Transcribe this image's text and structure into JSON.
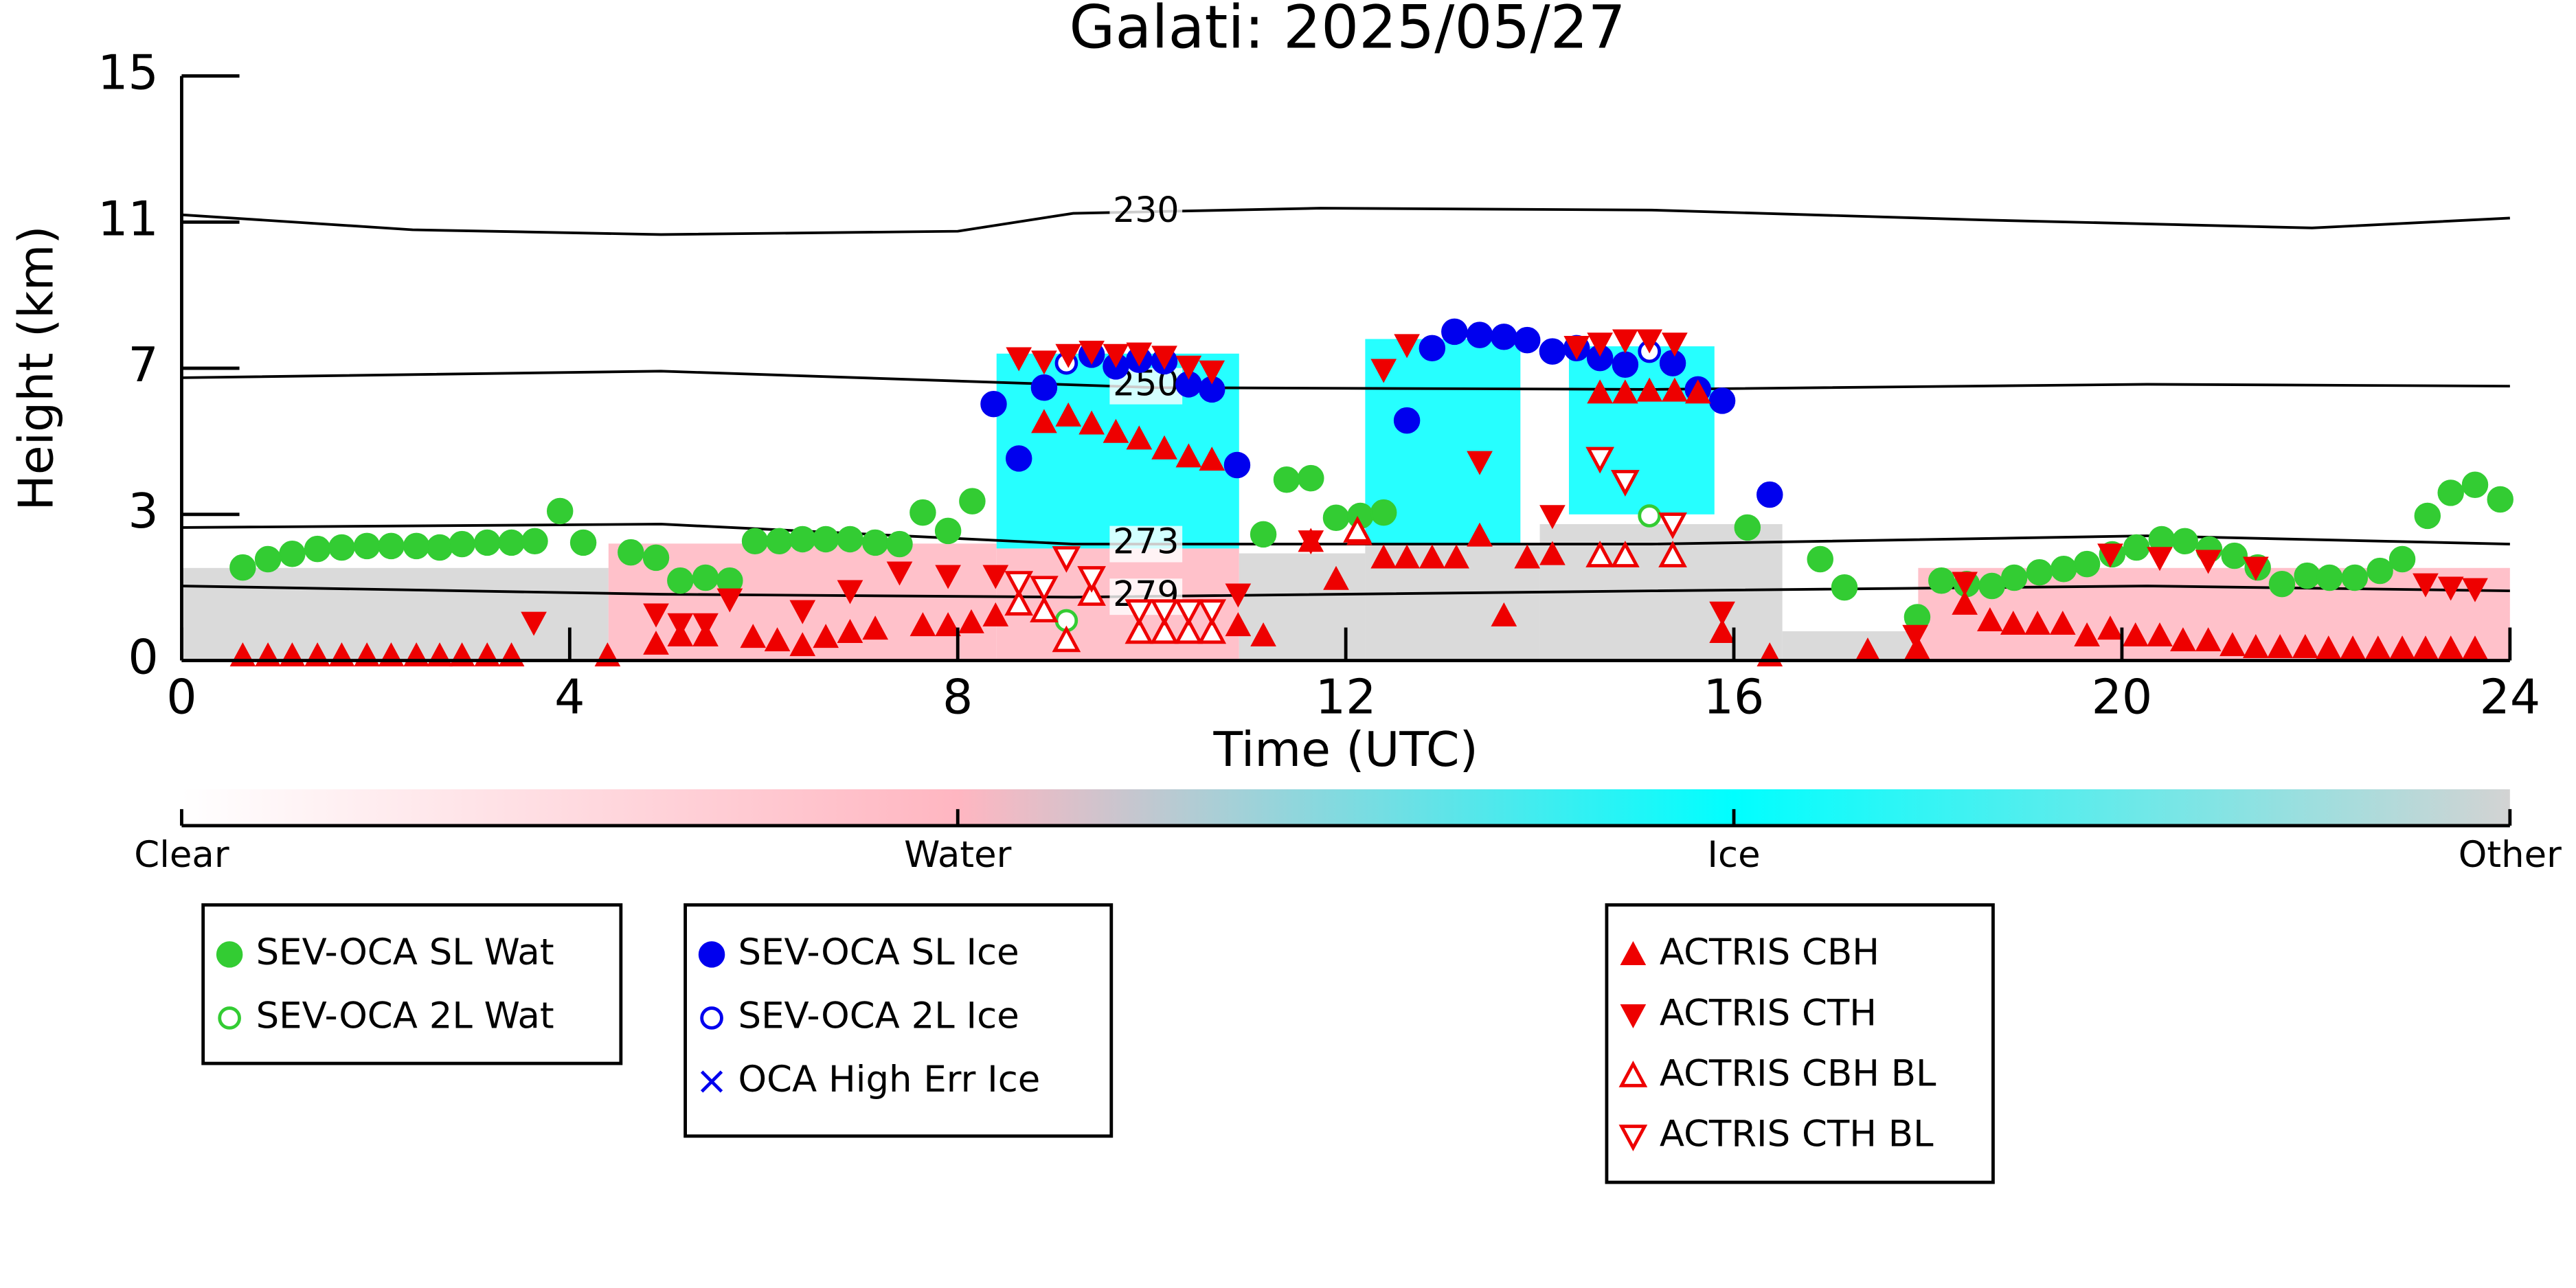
{
  "chart_data": {
    "type": "scatter",
    "title": "Galati: 2025/05/27",
    "xlabel": "Time (UTC)",
    "ylabel": "Height (km)",
    "xlim": [
      0,
      24
    ],
    "xticks": [
      0,
      4,
      8,
      12,
      16,
      20,
      24
    ],
    "ylim": [
      0,
      15
    ],
    "yticks": [
      0,
      3,
      7,
      11,
      15
    ],
    "colorbar": {
      "labels": [
        "Clear",
        "Water",
        "Ice",
        "Other"
      ],
      "colors": [
        "#ffffff",
        "#ffb6c1",
        "#00ffff",
        "#d3d3d3"
      ]
    },
    "curtain": [
      {
        "x": [
          0,
          4.4
        ],
        "y": [
          0,
          1.9
        ],
        "class": "Other"
      },
      {
        "x": [
          4.4,
          8.4
        ],
        "y": [
          0,
          2.4
        ],
        "class": "Water"
      },
      {
        "x": [
          8.4,
          10.9
        ],
        "y": [
          0,
          2.3
        ],
        "class": "Water"
      },
      {
        "x": [
          8.4,
          10.9
        ],
        "y": [
          2.3,
          7.4
        ],
        "class": "Ice"
      },
      {
        "x": [
          10.9,
          12.2
        ],
        "y": [
          0,
          2.2
        ],
        "class": "Other"
      },
      {
        "x": [
          12.2,
          14.0
        ],
        "y": [
          0,
          2.4
        ],
        "class": "Other"
      },
      {
        "x": [
          12.2,
          13.8
        ],
        "y": [
          2.4,
          7.8
        ],
        "class": "Ice"
      },
      {
        "x": [
          14.0,
          16.5
        ],
        "y": [
          0,
          2.8
        ],
        "class": "Other"
      },
      {
        "x": [
          14.3,
          15.8
        ],
        "y": [
          3.0,
          7.6
        ],
        "class": "Ice"
      },
      {
        "x": [
          16.5,
          17.9
        ],
        "y": [
          0,
          0.6
        ],
        "class": "Other"
      },
      {
        "x": [
          17.9,
          24
        ],
        "y": [
          0,
          1.9
        ],
        "class": "Water"
      }
    ],
    "contours": [
      {
        "label": "230",
        "x": [
          0,
          2.38,
          4.94,
          8.0,
          9.19,
          11.74,
          15.15,
          18.55,
          21.96,
          24
        ],
        "y": [
          11.2,
          10.79,
          10.66,
          10.75,
          11.24,
          11.38,
          11.33,
          11.06,
          10.84,
          11.11
        ]
      },
      {
        "label": "250",
        "x": [
          0,
          4.94,
          10.04,
          15.15,
          20.26,
          24
        ],
        "y": [
          6.74,
          6.92,
          6.47,
          6.42,
          6.56,
          6.51
        ]
      },
      {
        "label": "273",
        "x": [
          0,
          4.94,
          9.19,
          15.15,
          20.26,
          24
        ],
        "y": [
          2.73,
          2.8,
          2.39,
          2.39,
          2.56,
          2.39
        ]
      },
      {
        "label": "279",
        "x": [
          0,
          4.94,
          9.19,
          15.15,
          20.26,
          24
        ],
        "y": [
          1.53,
          1.36,
          1.3,
          1.43,
          1.53,
          1.43
        ]
      }
    ],
    "series": [
      {
        "name": "SEV-OCA SL Wat",
        "color": "#33cc33",
        "marker": "o",
        "x": [
          0.63,
          0.89,
          1.14,
          1.4,
          1.65,
          1.91,
          2.16,
          2.42,
          2.66,
          2.89,
          3.15,
          3.4,
          3.64,
          3.9,
          4.14,
          4.63,
          4.89,
          5.14,
          5.4,
          5.65,
          5.91,
          6.16,
          6.4,
          6.64,
          6.89,
          7.15,
          7.4,
          7.64,
          7.9,
          8.15,
          11.15,
          11.39,
          11.64,
          11.9,
          12.15,
          12.39,
          16.14,
          16.89,
          17.14,
          17.89,
          18.14,
          18.4,
          18.66,
          18.89,
          19.15,
          19.4,
          19.64,
          19.9,
          20.15,
          20.41,
          20.65,
          20.9,
          21.16,
          21.4,
          21.65,
          21.91,
          22.14,
          22.4,
          22.66,
          22.89,
          23.15,
          23.39,
          23.64,
          23.9
        ],
        "y": [
          1.91,
          2.08,
          2.19,
          2.29,
          2.32,
          2.35,
          2.35,
          2.35,
          2.32,
          2.39,
          2.42,
          2.42,
          2.45,
          3.09,
          2.42,
          2.22,
          2.11,
          1.64,
          1.7,
          1.64,
          2.45,
          2.45,
          2.49,
          2.49,
          2.49,
          2.42,
          2.39,
          3.05,
          2.66,
          3.36,
          2.59,
          3.95,
          3.99,
          2.93,
          2.97,
          3.05,
          2.73,
          2.08,
          1.5,
          0.89,
          1.64,
          1.57,
          1.53,
          1.7,
          1.81,
          1.88,
          1.98,
          2.18,
          2.32,
          2.49,
          2.45,
          2.28,
          2.15,
          1.91,
          1.57,
          1.74,
          1.7,
          1.7,
          1.84,
          2.08,
          2.97,
          3.59,
          3.81,
          3.41
        ]
      },
      {
        "name": "SEV-OCA 2L Wat",
        "color": "#33cc33",
        "marker": "o_open",
        "x": [
          9.12,
          15.13
        ],
        "y": [
          0.82,
          2.97
        ]
      },
      {
        "name": "SEV-OCA SL Ice",
        "color": "#0000ee",
        "marker": "o",
        "x": [
          8.37,
          8.63,
          8.89,
          9.38,
          9.63,
          9.87,
          10.13,
          10.38,
          10.62,
          10.88,
          12.63,
          12.89,
          13.12,
          13.38,
          13.63,
          13.87,
          14.13,
          14.38,
          14.62,
          14.88,
          15.37,
          15.63,
          15.88,
          16.37
        ],
        "y": [
          6.02,
          4.53,
          6.47,
          7.37,
          7.05,
          7.23,
          7.19,
          6.56,
          6.42,
          4.35,
          5.57,
          7.55,
          8.0,
          7.91,
          7.86,
          7.77,
          7.46,
          7.55,
          7.28,
          7.1,
          7.14,
          6.42,
          6.11,
          3.54
        ]
      },
      {
        "name": "SEV-OCA 2L Ice",
        "color": "#0000ee",
        "marker": "o_open",
        "x": [
          9.12,
          15.13
        ],
        "y": [
          7.14,
          7.46
        ]
      },
      {
        "name": "OCA High Err Ice",
        "color": "#0000ee",
        "marker": "x",
        "x": [],
        "y": []
      },
      {
        "name": "ACTRIS CBH",
        "color": "#ee0000",
        "marker": "^",
        "x": [
          0.63,
          0.89,
          1.14,
          1.4,
          1.65,
          1.91,
          2.16,
          2.42,
          2.66,
          2.89,
          3.15,
          3.4,
          4.39,
          4.89,
          5.14,
          5.4,
          5.89,
          6.14,
          6.4,
          6.64,
          6.89,
          7.15,
          7.64,
          7.9,
          8.14,
          8.39,
          8.89,
          9.14,
          9.38,
          9.63,
          9.87,
          10.13,
          10.38,
          10.62,
          10.89,
          11.15,
          11.64,
          11.9,
          12.14,
          12.39,
          12.63,
          12.89,
          13.14,
          13.38,
          13.63,
          13.87,
          14.13,
          14.62,
          14.88,
          15.13,
          15.39,
          15.63,
          15.88,
          16.37,
          17.38,
          17.89,
          18.38,
          18.64,
          18.88,
          19.13,
          19.39,
          19.64,
          19.88,
          20.14,
          20.39,
          20.63,
          20.89,
          21.14,
          21.38,
          21.63,
          21.89,
          22.13,
          22.38,
          22.64,
          22.89,
          23.13,
          23.39,
          23.64
        ],
        "y": [
          0.1,
          0.1,
          0.1,
          0.1,
          0.1,
          0.1,
          0.1,
          0.1,
          0.1,
          0.1,
          0.1,
          0.1,
          0.1,
          0.34,
          0.51,
          0.51,
          0.48,
          0.41,
          0.31,
          0.48,
          0.58,
          0.65,
          0.72,
          0.72,
          0.78,
          0.92,
          5.52,
          5.7,
          5.48,
          5.25,
          5.07,
          4.8,
          4.58,
          4.49,
          0.72,
          0.51,
          2.45,
          1.67,
          2.59,
          2.11,
          2.11,
          2.11,
          2.11,
          2.56,
          0.92,
          2.11,
          2.18,
          6.33,
          6.33,
          6.38,
          6.38,
          6.33,
          0.58,
          0.1,
          0.2,
          0.24,
          1.16,
          0.82,
          0.75,
          0.75,
          0.75,
          0.51,
          0.65,
          0.51,
          0.51,
          0.41,
          0.41,
          0.31,
          0.27,
          0.27,
          0.27,
          0.24,
          0.24,
          0.24,
          0.24,
          0.24,
          0.24,
          0.24
        ]
      },
      {
        "name": "ACTRIS CTH",
        "color": "#ee0000",
        "marker": "v",
        "x": [
          3.63,
          4.89,
          5.14,
          5.4,
          5.65,
          6.4,
          6.89,
          7.4,
          7.9,
          8.39,
          8.63,
          8.89,
          9.14,
          9.38,
          9.63,
          9.87,
          10.13,
          10.38,
          10.62,
          10.89,
          11.64,
          12.39,
          12.63,
          13.38,
          14.13,
          14.38,
          14.62,
          14.88,
          15.13,
          15.39,
          15.88,
          17.87,
          18.38,
          19.88,
          20.39,
          20.89,
          21.38,
          23.13,
          23.39,
          23.64
        ],
        "y": [
          0.78,
          0.95,
          0.75,
          0.75,
          1.26,
          1.02,
          1.43,
          1.81,
          1.74,
          1.74,
          7.28,
          7.19,
          7.37,
          7.46,
          7.37,
          7.41,
          7.32,
          7.05,
          6.92,
          1.36,
          2.45,
          6.96,
          7.64,
          4.44,
          2.97,
          7.59,
          7.68,
          7.77,
          7.77,
          7.68,
          0.99,
          0.51,
          1.6,
          2.18,
          2.11,
          2.05,
          1.91,
          1.57,
          1.5,
          1.47
        ]
      },
      {
        "name": "ACTRIS CBH BL",
        "color": "#ee0000",
        "marker": "^_open",
        "x": [
          8.63,
          8.89,
          9.12,
          9.38,
          9.87,
          10.13,
          10.38,
          10.62,
          12.12,
          14.62,
          14.88,
          15.37
        ],
        "y": [
          1.16,
          1.02,
          0.41,
          1.36,
          0.58,
          0.58,
          0.58,
          0.58,
          2.66,
          2.15,
          2.15,
          2.15
        ]
      },
      {
        "name": "ACTRIS CTH BL",
        "color": "#ee0000",
        "marker": "v_open",
        "x": [
          8.63,
          8.89,
          9.12,
          9.38,
          9.87,
          10.13,
          10.38,
          10.62,
          14.62,
          14.88,
          15.37
        ],
        "y": [
          1.6,
          1.5,
          2.11,
          1.7,
          1.02,
          1.02,
          1.02,
          1.02,
          4.53,
          3.9,
          2.8
        ]
      }
    ]
  }
}
